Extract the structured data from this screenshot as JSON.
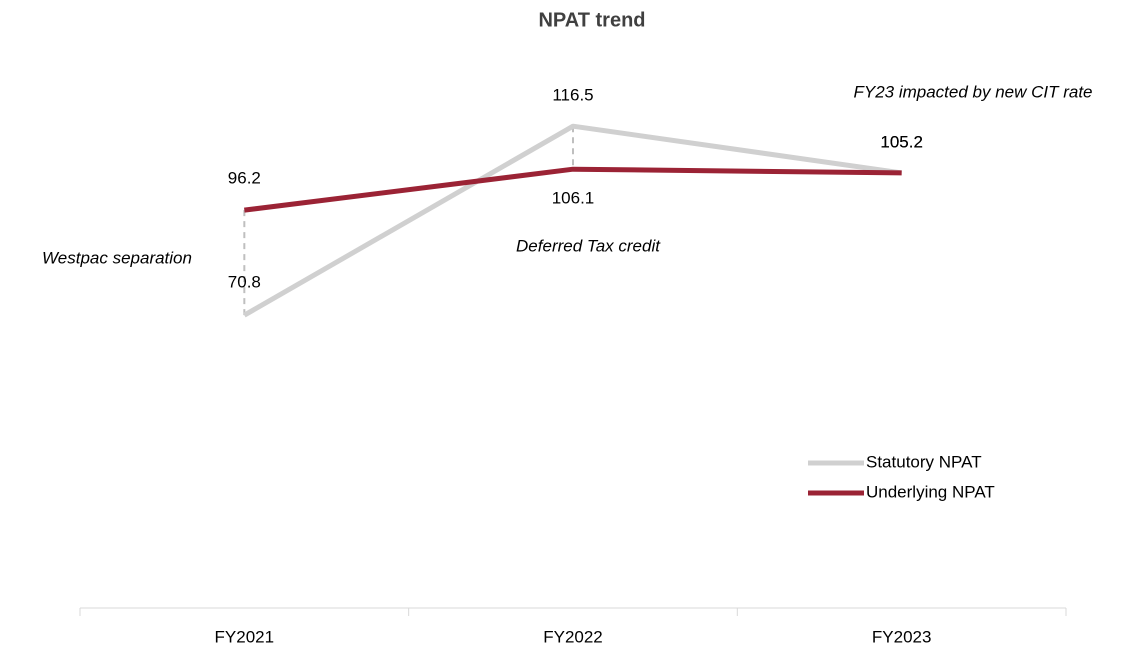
{
  "chart_data": {
    "type": "line",
    "title": "NPAT trend",
    "categories": [
      "FY2021",
      "FY2022",
      "FY2023"
    ],
    "series": [
      {
        "name": "Statutory NPAT",
        "color": "#d0d0d0",
        "values": [
          70.8,
          116.5,
          105.2
        ]
      },
      {
        "name": "Underlying NPAT",
        "color": "#9b2335",
        "values": [
          96.2,
          106.1,
          105.2
        ]
      }
    ],
    "ylim": [
      0,
      140
    ],
    "annotations": [
      "Westpac separation",
      "Deferred Tax credit",
      "FY23 impacted by new CIT rate"
    ],
    "legend": "right"
  }
}
